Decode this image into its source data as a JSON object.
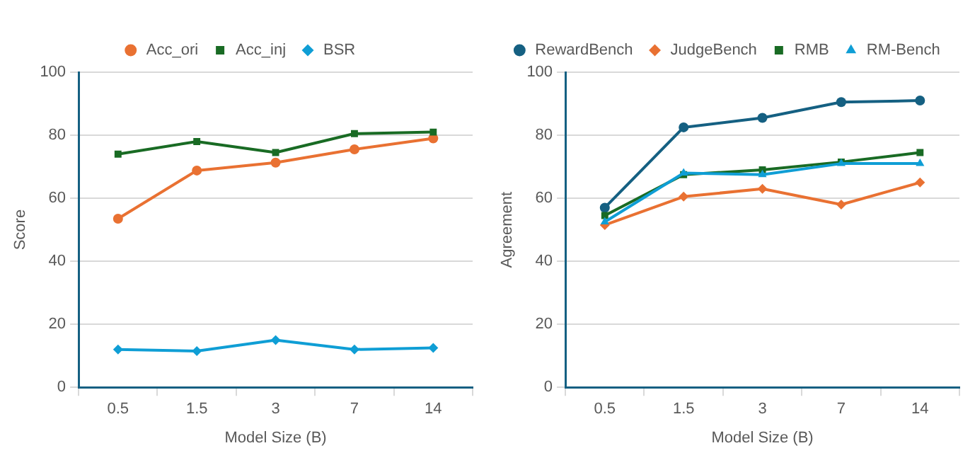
{
  "chart_data": [
    {
      "type": "line",
      "xlabel": "Model Size (B)",
      "ylabel": "Score",
      "categories": [
        "0.5",
        "1.5",
        "3",
        "7",
        "14"
      ],
      "ylim": [
        0,
        100
      ],
      "yticks": [
        0,
        20,
        40,
        60,
        80,
        100
      ],
      "grid": "y",
      "legend": "top",
      "series": [
        {
          "name": "Acc_ori",
          "color": "#e97132",
          "marker": "circle",
          "values": [
            53.5,
            68.8,
            71.3,
            75.5,
            79
          ]
        },
        {
          "name": "Acc_inj",
          "color": "#196b24",
          "marker": "square",
          "values": [
            74,
            78,
            74.5,
            80.5,
            81
          ]
        },
        {
          "name": "BSR",
          "color": "#0f9ed5",
          "marker": "diamond",
          "values": [
            12,
            11.5,
            15,
            12,
            12.5
          ]
        }
      ]
    },
    {
      "type": "line",
      "xlabel": "Model Size (B)",
      "ylabel": "Agreement",
      "categories": [
        "0.5",
        "1.5",
        "3",
        "7",
        "14"
      ],
      "ylim": [
        0,
        100
      ],
      "yticks": [
        0,
        20,
        40,
        60,
        80,
        100
      ],
      "grid": "y",
      "legend": "top",
      "series": [
        {
          "name": "RewardBench",
          "color": "#156082",
          "marker": "circle",
          "values": [
            57,
            82.5,
            85.5,
            90.5,
            91
          ]
        },
        {
          "name": "JudgeBench",
          "color": "#e97132",
          "marker": "diamond",
          "values": [
            51.5,
            60.5,
            63,
            58,
            65
          ]
        },
        {
          "name": "RMB",
          "color": "#196b24",
          "marker": "square",
          "values": [
            54.5,
            67.5,
            69,
            71.5,
            74.5
          ]
        },
        {
          "name": "RM-Bench",
          "color": "#0f9ed5",
          "marker": "triangle",
          "values": [
            52.5,
            68,
            67.5,
            71,
            71
          ]
        }
      ]
    }
  ]
}
